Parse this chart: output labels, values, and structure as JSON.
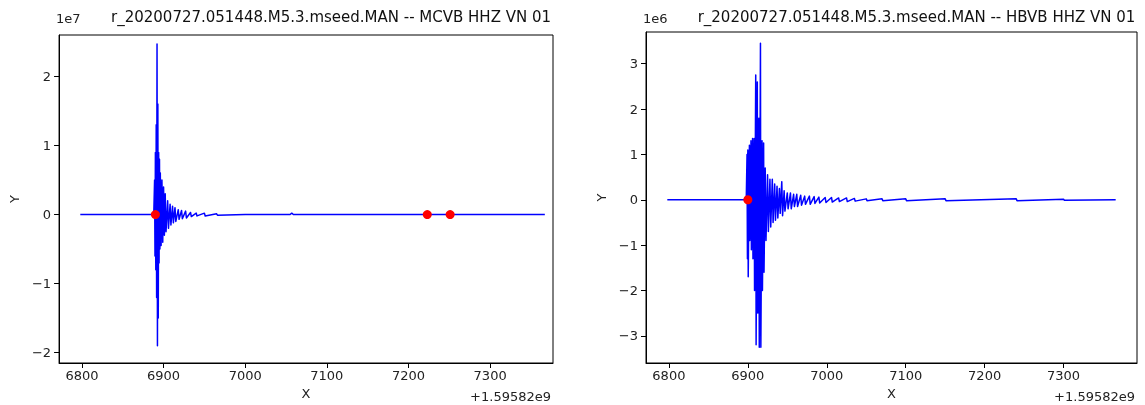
{
  "chart_data": [
    {
      "type": "line",
      "title": "r_20200727.051448.M5.3.mseed.MAN -- MCVB HHZ VN 01",
      "xlabel": "X",
      "ylabel": "Y",
      "annotations": [
        "1e7",
        "+1.59582e9"
      ],
      "xlim": [
        6772,
        7377
      ],
      "ylim": [
        -2.15,
        2.6
      ],
      "xticks": [
        6800,
        6900,
        7000,
        7100,
        7200,
        7300
      ],
      "yticks": [
        -2,
        -1,
        0,
        1,
        2
      ],
      "grid": false,
      "series": [
        {
          "color": "#0000ff",
          "x": [
            6798,
            6850,
            6888,
            6889,
            6889.5,
            6890,
            6890.5,
            6891,
            6891.5,
            6892,
            6892.5,
            6893,
            6893.5,
            6894,
            6894.5,
            6895,
            6895.5,
            6896,
            6897,
            6898,
            6899,
            6900,
            6901,
            6902,
            6903,
            6905,
            6906,
            6908,
            6909,
            6911,
            6912,
            6914,
            6915,
            6918,
            6919,
            6922,
            6923,
            6927,
            6928,
            6933,
            6934,
            6940,
            6941,
            6950,
            6951,
            6965,
            6966,
            7000,
            7055,
            7057,
            7059,
            7367
          ],
          "values": [
            0,
            0,
            0,
            0.5,
            -0.6,
            0.9,
            -0.8,
            1.3,
            -1.2,
            2.47,
            -1.9,
            1.6,
            -1.5,
            0.9,
            -0.7,
            0.8,
            -0.5,
            0.6,
            -0.45,
            0.5,
            -0.4,
            0.4,
            -0.3,
            0.3,
            -0.25,
            0.2,
            -0.2,
            0.15,
            -0.15,
            0.12,
            -0.12,
            0.1,
            -0.1,
            0.07,
            -0.07,
            0.06,
            -0.06,
            0.05,
            -0.05,
            0.03,
            -0.03,
            0.02,
            -0.02,
            0.02,
            -0.02,
            0.01,
            -0.01,
            0,
            0,
            0.02,
            0,
            0
          ]
        },
        {
          "type": "scatter",
          "color": "#ff0000",
          "marker": "circle",
          "x": [
            6890,
            7223,
            7251
          ],
          "values": [
            0,
            0,
            0
          ]
        }
      ]
    },
    {
      "type": "line",
      "title": "r_20200727.051448.M5.3.mseed.MAN -- HBVB HHZ VN 01",
      "xlabel": "X",
      "ylabel": "Y",
      "annotations": [
        "1e6",
        "+1.59582e9"
      ],
      "xlim": [
        6771,
        7393
      ],
      "ylim": [
        -3.6,
        3.7
      ],
      "xticks": [
        6800,
        6900,
        7000,
        7100,
        7200,
        7300
      ],
      "yticks": [
        -3,
        -2,
        -1,
        0,
        1,
        2,
        3
      ],
      "grid": false,
      "series": [
        {
          "color": "#0000ff",
          "x": [
            6798,
            6850,
            6898,
            6899,
            6899.5,
            6900,
            6900.5,
            6902,
            6902.5,
            6904,
            6904.5,
            6906,
            6906.5,
            6908,
            6908.5,
            6910,
            6910.5,
            6912,
            6912.5,
            6914,
            6914.5,
            6916,
            6916.5,
            6918,
            6918.5,
            6920,
            6920.5,
            6922,
            6923,
            6925,
            6926,
            6928,
            6929,
            6931,
            6932,
            6934,
            6935,
            6937,
            6938,
            6940,
            6941,
            6943,
            6944,
            6946,
            6947,
            6950,
            6951,
            6954,
            6955,
            6958,
            6959,
            6962,
            6963,
            6967,
            6968,
            6972,
            6973,
            6978,
            6979,
            6984,
            6985,
            6990,
            6991,
            6998,
            6999,
            7006,
            7007,
            7015,
            7016,
            7025,
            7026,
            7035,
            7036,
            7050,
            7051,
            7070,
            7071,
            7100,
            7101,
            7150,
            7151,
            7240,
            7241,
            7300,
            7301,
            7366
          ],
          "values": [
            0,
            0,
            0,
            1.0,
            -1.3,
            1.1,
            -1.7,
            1.2,
            -0.9,
            1.3,
            -1.1,
            1.35,
            -1.3,
            1.35,
            -2.0,
            2.75,
            -3.2,
            2.6,
            -2.5,
            1.8,
            -3.25,
            3.45,
            -3.25,
            1.3,
            -2.0,
            1.25,
            -1.6,
            0.7,
            -0.9,
            0.55,
            -0.7,
            0.45,
            -0.6,
            0.45,
            -0.5,
            0.35,
            -0.45,
            0.3,
            -0.4,
            0.25,
            -0.3,
            0.4,
            -0.35,
            0.2,
            -0.25,
            0.15,
            -0.2,
            0.15,
            -0.2,
            0.12,
            -0.15,
            0.12,
            -0.15,
            0.1,
            -0.12,
            0.08,
            -0.1,
            0.08,
            -0.1,
            0.07,
            -0.08,
            0.06,
            -0.07,
            0.05,
            -0.06,
            0.05,
            -0.05,
            0.04,
            -0.04,
            0.04,
            -0.04,
            0.03,
            -0.03,
            0.02,
            -0.02,
            0.02,
            -0.02,
            0.02,
            -0.02,
            0.02,
            -0.02,
            0.02,
            -0.02,
            0.01,
            -0.01,
            0
          ]
        },
        {
          "type": "scatter",
          "color": "#ff0000",
          "marker": "circle",
          "x": [
            6900
          ],
          "values": [
            0
          ]
        }
      ]
    }
  ]
}
